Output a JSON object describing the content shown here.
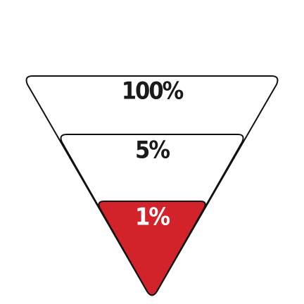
{
  "funnel": {
    "levels": [
      {
        "label": "100%",
        "fill": "#ffffff",
        "text_color": "#1a1a1a"
      },
      {
        "label": "5%",
        "fill": "#ffffff",
        "text_color": "#1a1a1a"
      },
      {
        "label": "1%",
        "fill": "#d2232a",
        "text_color": "#ffffff"
      }
    ],
    "outline_color": "#111111"
  }
}
